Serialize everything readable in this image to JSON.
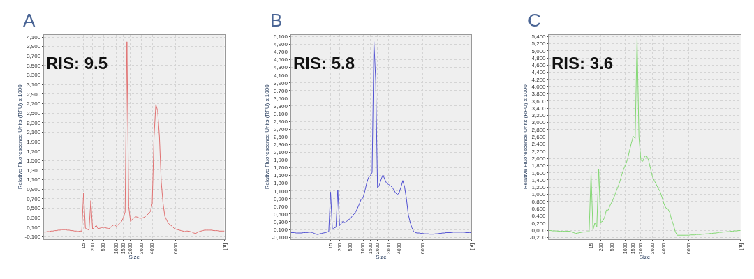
{
  "chart_data": [
    {
      "type": "line",
      "title": "A",
      "xlabel": "Size",
      "ylabel": "Relative Fluorescence Units (RFU) x 1000",
      "annotations": [
        "RIS: 9.5"
      ],
      "grid": true,
      "categories": [
        null,
        null,
        null,
        null,
        null,
        null,
        null,
        null,
        null,
        null,
        null,
        null,
        null,
        null,
        null,
        null,
        null,
        null,
        null,
        null,
        null,
        null,
        "15",
        null,
        null,
        null,
        null,
        "200",
        null,
        null,
        null,
        null,
        null,
        "500",
        null,
        null,
        null,
        null,
        null,
        null,
        "1000",
        null,
        null,
        null,
        "1500",
        null,
        null,
        null,
        "2000",
        null,
        null,
        null,
        null,
        null,
        "3000",
        null,
        null,
        null,
        null,
        null,
        "4000",
        null,
        null,
        null,
        null,
        null,
        null,
        null,
        null,
        null,
        null,
        null,
        null,
        "6000",
        null,
        null,
        null,
        null,
        null,
        null,
        null,
        null,
        null,
        null,
        null,
        null,
        null,
        null,
        null,
        null,
        null,
        null,
        null,
        null,
        null,
        null,
        null,
        null,
        null,
        null,
        "[nt]"
      ],
      "ylim": [
        -0.15,
        4.15
      ],
      "yticks": [
        {
          "value": -0.1,
          "label": "-0,100"
        },
        {
          "value": 0.1,
          "label": "0,100"
        },
        {
          "value": 0.3,
          "label": "0,300"
        },
        {
          "value": 0.5,
          "label": "0,500"
        },
        {
          "value": 0.7,
          "label": "0,700"
        },
        {
          "value": 0.9,
          "label": "0,900"
        },
        {
          "value": 1.1,
          "label": "1,100"
        },
        {
          "value": 1.3,
          "label": "1,300"
        },
        {
          "value": 1.5,
          "label": "1,500"
        },
        {
          "value": 1.7,
          "label": "1,700"
        },
        {
          "value": 1.9,
          "label": "1,900"
        },
        {
          "value": 2.1,
          "label": "2,100"
        },
        {
          "value": 2.3,
          "label": "2,300"
        },
        {
          "value": 2.5,
          "label": "2,500"
        },
        {
          "value": 2.7,
          "label": "2,700"
        },
        {
          "value": 2.9,
          "label": "2,900"
        },
        {
          "value": 3.1,
          "label": "3,100"
        },
        {
          "value": 3.3,
          "label": "3,300"
        },
        {
          "value": 3.5,
          "label": "3,500"
        },
        {
          "value": 3.7,
          "label": "3,700"
        },
        {
          "value": 3.9,
          "label": "3,900"
        },
        {
          "value": 4.1,
          "label": "4,100"
        }
      ],
      "series": [
        {
          "color": "#e07272",
          "values": [
            0.0,
            0.0,
            0.01,
            0.01,
            0.02,
            0.02,
            0.03,
            0.03,
            0.04,
            0.04,
            0.05,
            0.05,
            0.05,
            0.04,
            0.04,
            0.03,
            0.03,
            0.02,
            0.02,
            0.01,
            0.02,
            0.02,
            0.82,
            0.08,
            0.06,
            0.04,
            0.66,
            0.06,
            0.1,
            0.14,
            0.07,
            0.08,
            0.09,
            0.1,
            0.09,
            0.08,
            0.07,
            0.1,
            0.13,
            0.16,
            0.12,
            0.15,
            0.18,
            0.22,
            0.3,
            0.42,
            4.0,
            0.53,
            0.22,
            0.27,
            0.3,
            0.32,
            0.31,
            0.29,
            0.29,
            0.3,
            0.32,
            0.35,
            0.39,
            0.43,
            0.6,
            2.0,
            2.68,
            2.55,
            2.0,
            1.05,
            0.6,
            0.33,
            0.25,
            0.18,
            0.15,
            0.12,
            0.08,
            0.06,
            0.05,
            0.04,
            0.03,
            0.02,
            0.01,
            0.02,
            0.02,
            0.01,
            0.0,
            -0.02,
            -0.03,
            -0.01,
            0.01,
            0.02,
            0.03,
            0.04,
            0.04,
            0.04,
            0.04,
            0.04,
            0.03,
            0.03,
            0.03,
            0.02,
            0.02,
            0.02,
            0.02
          ]
        }
      ]
    },
    {
      "type": "line",
      "title": "B",
      "xlabel": "Size",
      "ylabel": "Relative Fluorescence Units (RFU) x 1000",
      "annotations": [
        "RIS: 5.8"
      ],
      "grid": true,
      "categories": [
        null,
        null,
        null,
        null,
        null,
        null,
        null,
        null,
        null,
        null,
        null,
        null,
        null,
        null,
        null,
        null,
        null,
        null,
        null,
        null,
        null,
        null,
        "15",
        null,
        null,
        null,
        null,
        "200",
        null,
        null,
        null,
        null,
        null,
        "500",
        null,
        null,
        null,
        null,
        null,
        null,
        "1000",
        null,
        null,
        null,
        "1500",
        null,
        null,
        null,
        "2000",
        null,
        null,
        null,
        null,
        null,
        "3000",
        null,
        null,
        null,
        null,
        null,
        "4000",
        null,
        null,
        null,
        null,
        null,
        null,
        null,
        null,
        null,
        null,
        null,
        null,
        "6000",
        null,
        null,
        null,
        null,
        null,
        null,
        null,
        null,
        null,
        null,
        null,
        null,
        null,
        null,
        null,
        null,
        null,
        null,
        null,
        null,
        null,
        null,
        null,
        null,
        null,
        null,
        "[nt]"
      ],
      "ylim": [
        -0.15,
        5.15
      ],
      "yticks": [
        {
          "value": -0.1,
          "label": "-0,100"
        },
        {
          "value": 0.1,
          "label": "0,100"
        },
        {
          "value": 0.3,
          "label": "0,300"
        },
        {
          "value": 0.5,
          "label": "0,500"
        },
        {
          "value": 0.7,
          "label": "0,700"
        },
        {
          "value": 0.9,
          "label": "0,900"
        },
        {
          "value": 1.1,
          "label": "1,100"
        },
        {
          "value": 1.3,
          "label": "1,300"
        },
        {
          "value": 1.5,
          "label": "1,500"
        },
        {
          "value": 1.7,
          "label": "1,700"
        },
        {
          "value": 1.9,
          "label": "1,900"
        },
        {
          "value": 2.1,
          "label": "2,100"
        },
        {
          "value": 2.3,
          "label": "2,300"
        },
        {
          "value": 2.5,
          "label": "2,500"
        },
        {
          "value": 2.7,
          "label": "2,700"
        },
        {
          "value": 2.9,
          "label": "2,900"
        },
        {
          "value": 3.1,
          "label": "3,100"
        },
        {
          "value": 3.3,
          "label": "3,300"
        },
        {
          "value": 3.5,
          "label": "3,500"
        },
        {
          "value": 3.7,
          "label": "3,700"
        },
        {
          "value": 3.9,
          "label": "3,900"
        },
        {
          "value": 4.1,
          "label": "4,100"
        },
        {
          "value": 4.3,
          "label": "4,300"
        },
        {
          "value": 4.5,
          "label": "4,500"
        },
        {
          "value": 4.7,
          "label": "4,700"
        },
        {
          "value": 4.9,
          "label": "4,900"
        },
        {
          "value": 5.1,
          "label": "5,100"
        }
      ],
      "series": [
        {
          "color": "#5252d2",
          "values": [
            0.02,
            0.02,
            0.02,
            0.01,
            0.01,
            0.01,
            0.01,
            0.02,
            0.02,
            0.02,
            0.03,
            0.03,
            0.02,
            0.0,
            -0.02,
            -0.03,
            -0.01,
            0.0,
            0.01,
            0.02,
            0.03,
            0.05,
            1.07,
            0.1,
            0.14,
            0.16,
            1.13,
            0.2,
            0.26,
            0.32,
            0.27,
            0.32,
            0.36,
            0.38,
            0.45,
            0.5,
            0.56,
            0.66,
            0.77,
            0.89,
            0.92,
            1.1,
            1.3,
            1.45,
            1.49,
            1.58,
            4.97,
            3.95,
            1.17,
            1.25,
            1.4,
            1.52,
            1.4,
            1.3,
            1.27,
            1.24,
            1.2,
            1.13,
            1.05,
            1.0,
            1.06,
            1.2,
            1.37,
            1.2,
            0.9,
            0.5,
            0.3,
            0.15,
            0.05,
            0.02,
            0.01,
            0.01,
            0.0,
            0.0,
            -0.01,
            -0.01,
            -0.01,
            -0.02,
            -0.02,
            -0.02,
            -0.01,
            -0.01,
            0.0,
            0.0,
            0.01,
            0.01,
            0.02,
            0.02,
            0.02,
            0.02,
            0.03,
            0.03,
            0.03,
            0.03,
            0.03,
            0.03,
            0.03,
            0.02,
            0.02,
            0.02,
            0.02
          ]
        }
      ]
    },
    {
      "type": "line",
      "title": "C",
      "xlabel": "Size",
      "ylabel": "Relative Fluorescence Units (RFU) x 1000",
      "annotations": [
        "RIS: 3.6"
      ],
      "grid": true,
      "categories": [
        null,
        null,
        null,
        null,
        null,
        null,
        null,
        null,
        null,
        null,
        null,
        null,
        null,
        null,
        null,
        null,
        null,
        null,
        null,
        null,
        null,
        null,
        "15",
        null,
        null,
        null,
        null,
        "200",
        null,
        null,
        null,
        null,
        null,
        "500",
        null,
        null,
        null,
        null,
        null,
        null,
        "1000",
        null,
        null,
        null,
        "1500",
        null,
        null,
        null,
        "2000",
        null,
        null,
        null,
        null,
        null,
        "3000",
        null,
        null,
        null,
        null,
        null,
        "4000",
        null,
        null,
        null,
        null,
        null,
        null,
        null,
        null,
        null,
        null,
        null,
        null,
        "6000",
        null,
        null,
        null,
        null,
        null,
        null,
        null,
        null,
        null,
        null,
        null,
        null,
        null,
        null,
        null,
        null,
        null,
        null,
        null,
        null,
        null,
        null,
        null,
        null,
        null,
        null,
        "[nt]"
      ],
      "ylim": [
        -0.25,
        5.45
      ],
      "yticks": [
        {
          "value": -0.2,
          "label": "-0,200"
        },
        {
          "value": 0,
          "label": "0,000"
        },
        {
          "value": 0.2,
          "label": "0,200"
        },
        {
          "value": 0.4,
          "label": "0,400"
        },
        {
          "value": 0.6,
          "label": "0,600"
        },
        {
          "value": 0.8,
          "label": "0,800"
        },
        {
          "value": 1,
          "label": "1,000"
        },
        {
          "value": 1.2,
          "label": "1,200"
        },
        {
          "value": 1.4,
          "label": "1,400"
        },
        {
          "value": 1.6,
          "label": "1,600"
        },
        {
          "value": 1.8,
          "label": "1,800"
        },
        {
          "value": 2,
          "label": "2,000"
        },
        {
          "value": 2.2,
          "label": "2,200"
        },
        {
          "value": 2.4,
          "label": "2,400"
        },
        {
          "value": 2.6,
          "label": "2,600"
        },
        {
          "value": 2.8,
          "label": "2,800"
        },
        {
          "value": 3,
          "label": "3,000"
        },
        {
          "value": 3.2,
          "label": "3,200"
        },
        {
          "value": 3.4,
          "label": "3,400"
        },
        {
          "value": 3.6,
          "label": "3,600"
        },
        {
          "value": 3.8,
          "label": "3,800"
        },
        {
          "value": 4,
          "label": "4,000"
        },
        {
          "value": 4.2,
          "label": "4,200"
        },
        {
          "value": 4.4,
          "label": "4,400"
        },
        {
          "value": 4.6,
          "label": "4,600"
        },
        {
          "value": 4.8,
          "label": "4,800"
        },
        {
          "value": 5,
          "label": "5,000"
        },
        {
          "value": 5.2,
          "label": "5,200"
        },
        {
          "value": 5.4,
          "label": "5,400"
        }
      ],
      "series": [
        {
          "color": "#84d874",
          "values": [
            -0.01,
            -0.01,
            -0.02,
            -0.02,
            -0.02,
            -0.03,
            -0.03,
            -0.03,
            -0.03,
            -0.03,
            -0.03,
            -0.03,
            -0.05,
            -0.07,
            -0.09,
            -0.08,
            -0.07,
            -0.06,
            -0.05,
            -0.05,
            -0.04,
            -0.04,
            1.58,
            0.0,
            0.21,
            0.1,
            1.7,
            0.22,
            0.25,
            0.35,
            0.56,
            0.56,
            0.7,
            0.8,
            0.92,
            1.07,
            1.2,
            1.35,
            1.54,
            1.7,
            1.82,
            1.97,
            2.2,
            2.42,
            2.62,
            2.55,
            5.35,
            2.6,
            1.95,
            1.92,
            2.06,
            2.07,
            1.95,
            1.72,
            1.5,
            1.38,
            1.28,
            1.17,
            1.08,
            0.92,
            0.74,
            0.62,
            0.6,
            0.5,
            0.3,
            0.15,
            -0.05,
            -0.14,
            -0.14,
            -0.14,
            -0.14,
            -0.14,
            -0.14,
            -0.14,
            -0.13,
            -0.13,
            -0.13,
            -0.12,
            -0.12,
            -0.12,
            -0.11,
            -0.11,
            -0.1,
            -0.1,
            -0.09,
            -0.09,
            -0.08,
            -0.08,
            -0.07,
            -0.06,
            -0.06,
            -0.05,
            -0.05,
            -0.04,
            -0.04,
            -0.03,
            -0.03,
            -0.02,
            -0.02,
            -0.01,
            -0.01
          ]
        }
      ]
    }
  ]
}
